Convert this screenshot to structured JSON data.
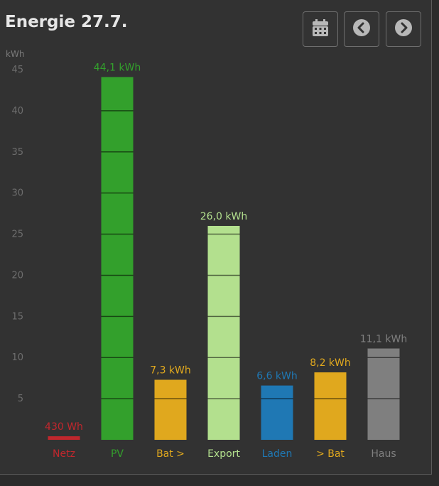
{
  "header": {
    "title": "Energie 27.7."
  },
  "buttons": {
    "calendar_icon": "calendar-icon",
    "prev_icon": "chevron-left-circle-icon",
    "next_icon": "chevron-right-circle-icon"
  },
  "chart_data": {
    "type": "bar",
    "ylabel": "kWh",
    "ylim": [
      0,
      45
    ],
    "yticks": [
      5,
      10,
      15,
      20,
      25,
      30,
      35,
      40,
      45
    ],
    "segment_lines_every": 5,
    "grid": false,
    "categories": [
      "Netz",
      "PV",
      "Bat >",
      "Export",
      "Laden",
      "> Bat",
      "Haus"
    ],
    "values": [
      0.43,
      44.1,
      7.3,
      26.0,
      6.6,
      8.2,
      11.1
    ],
    "value_labels": [
      "430 Wh",
      "44,1 kWh",
      "7,3 kWh",
      "26,0 kWh",
      "6,6 kWh",
      "8,2 kWh",
      "11,1 kWh"
    ],
    "colors": [
      "#c0272d",
      "#33a02c",
      "#e0a81e",
      "#b3e08e",
      "#1f78b4",
      "#e0a81e",
      "#7f7f7f"
    ]
  }
}
